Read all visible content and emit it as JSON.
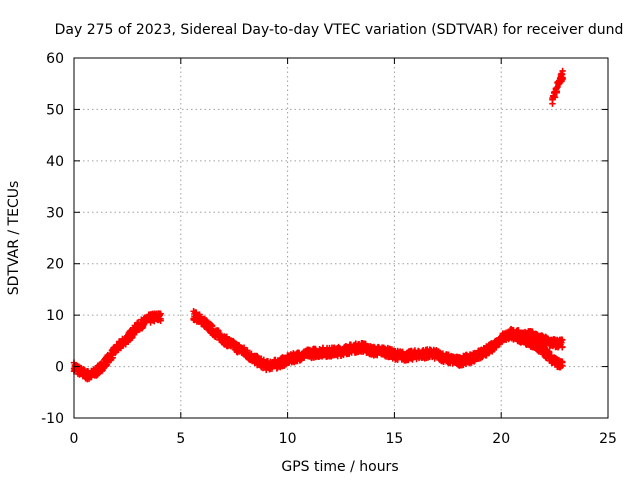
{
  "chart_data": {
    "type": "scatter",
    "title": "Day 275 of 2023, Sidereal Day-to-day VTEC variation (SDTVAR) for receiver dund",
    "xlabel": "GPS time / hours",
    "ylabel": "SDTVAR / TECUs",
    "xlim": [
      0,
      25
    ],
    "ylim": [
      -10,
      60
    ],
    "xticks": [
      "0",
      "5",
      "10",
      "15",
      "20",
      "25"
    ],
    "yticks": [
      "-10",
      "0",
      "10",
      "20",
      "30",
      "40",
      "50",
      "60"
    ],
    "grid": true,
    "marker": "plus",
    "series": [
      {
        "name": "SDTVAR",
        "color": "#ff0000",
        "band": 0.9,
        "segments": [
          [
            [
              0.0,
              0.0
            ],
            [
              0.3,
              -1.0
            ],
            [
              0.7,
              -1.8
            ],
            [
              1.0,
              -1.2
            ],
            [
              1.3,
              0.0
            ],
            [
              1.7,
              2.0
            ],
            [
              2.0,
              3.5
            ],
            [
              2.5,
              5.5
            ],
            [
              3.0,
              7.8
            ],
            [
              3.5,
              9.2
            ],
            [
              3.8,
              9.6
            ],
            [
              4.1,
              9.6
            ]
          ],
          [
            [
              5.6,
              10.0
            ],
            [
              6.0,
              9.0
            ],
            [
              6.5,
              7.0
            ],
            [
              7.0,
              5.3
            ],
            [
              7.5,
              4.0
            ],
            [
              8.0,
              2.8
            ],
            [
              8.5,
              1.3
            ],
            [
              9.0,
              0.2
            ],
            [
              9.5,
              0.5
            ],
            [
              10.0,
              1.3
            ],
            [
              10.5,
              2.0
            ],
            [
              11.0,
              2.5
            ],
            [
              11.5,
              2.8
            ],
            [
              12.0,
              2.8
            ],
            [
              12.5,
              3.0
            ],
            [
              13.0,
              3.5
            ],
            [
              13.5,
              3.8
            ],
            [
              14.0,
              3.0
            ],
            [
              14.5,
              3.0
            ],
            [
              15.0,
              2.3
            ],
            [
              15.5,
              2.0
            ],
            [
              16.0,
              2.3
            ],
            [
              16.5,
              2.5
            ],
            [
              17.0,
              2.3
            ],
            [
              17.5,
              1.5
            ],
            [
              18.0,
              1.0
            ],
            [
              18.5,
              1.5
            ],
            [
              19.0,
              2.3
            ],
            [
              19.5,
              3.5
            ],
            [
              20.0,
              5.5
            ],
            [
              20.5,
              6.5
            ],
            [
              21.0,
              6.0
            ],
            [
              21.5,
              6.0
            ],
            [
              22.0,
              5.0
            ],
            [
              22.5,
              4.5
            ],
            [
              22.9,
              4.5
            ]
          ],
          [
            [
              20.5,
              6.0
            ],
            [
              21.0,
              5.5
            ],
            [
              21.5,
              4.5
            ],
            [
              22.0,
              3.0
            ],
            [
              22.4,
              1.5
            ],
            [
              22.7,
              0.5
            ],
            [
              22.9,
              0.0
            ]
          ],
          [
            [
              22.4,
              52.0
            ],
            [
              22.6,
              54.0
            ],
            [
              22.8,
              56.0
            ],
            [
              22.9,
              57.0
            ]
          ]
        ]
      }
    ]
  }
}
